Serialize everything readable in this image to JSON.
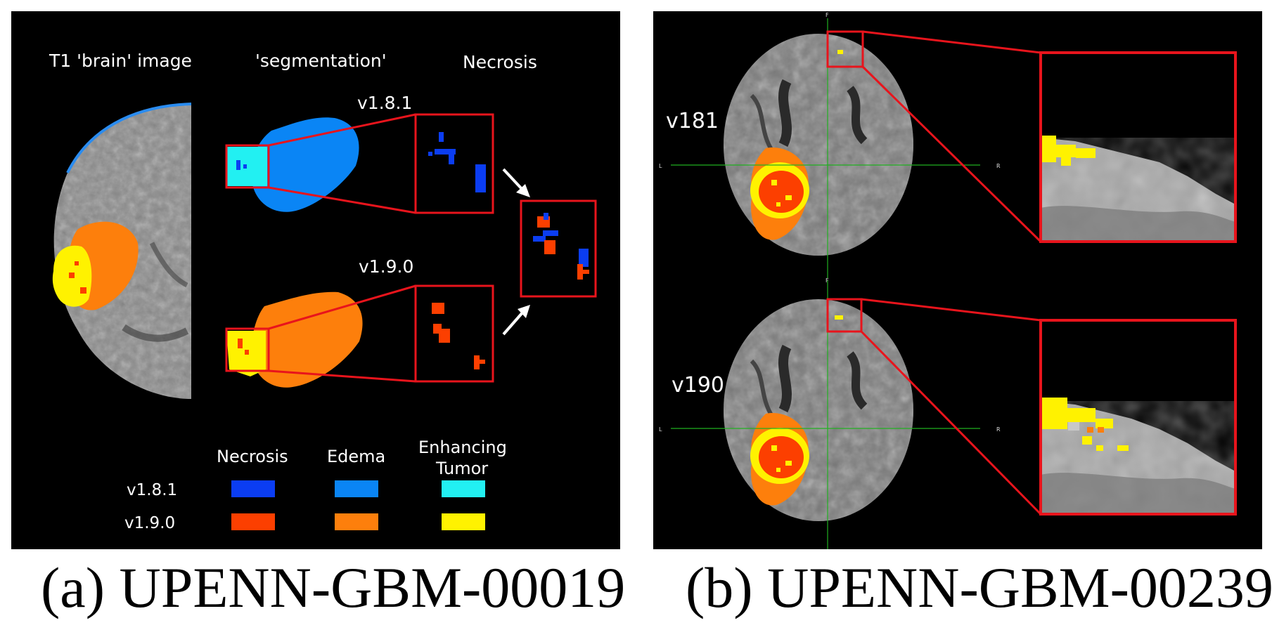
{
  "panel_a": {
    "col_headers": [
      "T1 'brain' image",
      "'segmentation'",
      "Necrosis"
    ],
    "row_versions": [
      "v1.8.1",
      "v1.9.0"
    ],
    "legend": {
      "classes": [
        "Necrosis",
        "Edema",
        "Enhancing",
        "Tumor"
      ],
      "rows": [
        {
          "version": "v1.8.1",
          "colors": [
            "#0b3df2",
            "#0a85f5",
            "#22f0f2"
          ]
        },
        {
          "version": "v1.9.0",
          "colors": [
            "#fc3f00",
            "#fd7f0c",
            "#fff200"
          ]
        }
      ]
    },
    "caption": "(a) UPENN-GBM-00019"
  },
  "panel_b": {
    "row_versions": [
      "v181",
      "v190"
    ],
    "axis_letters": {
      "left": "L",
      "right": "R",
      "top": "F"
    },
    "caption": "(b) UPENN-GBM-00239"
  },
  "colors": {
    "highlight_box": "#e8141c",
    "necrosis_v181": "#0b3df2",
    "edema_v181": "#0a85f5",
    "enhancing_v181": "#22f0f2",
    "necrosis_v190": "#fc3f00",
    "edema_v190": "#fd7f0c",
    "enhancing_v190": "#fff200"
  }
}
